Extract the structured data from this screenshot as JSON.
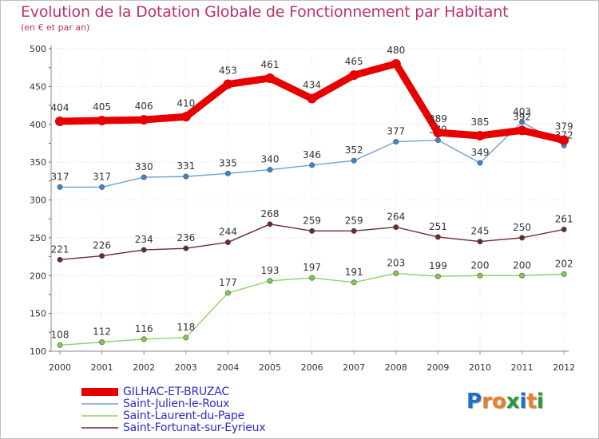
{
  "header": {
    "title": "Evolution de la Dotation Globale de Fonctionnement par Habitant",
    "subtitle": "(en € et par an)"
  },
  "logo": {
    "text": "Proxiti",
    "letters": [
      {
        "ch": "P",
        "color": "#1f6fc8"
      },
      {
        "ch": "r",
        "color": "#e8812a"
      },
      {
        "ch": "o",
        "color": "#e8812a"
      },
      {
        "ch": "x",
        "color": "#2a9a3a"
      },
      {
        "ch": "i",
        "color": "#1f6fc8"
      },
      {
        "ch": "t",
        "color": "#e8812a"
      },
      {
        "ch": "i",
        "color": "#2a9a3a"
      }
    ]
  },
  "chart_data": {
    "type": "line",
    "title": "Evolution de la Dotation Globale de Fonctionnement par Habitant",
    "subtitle": "(en € et par an)",
    "x": [
      "2000",
      "2001",
      "2002",
      "2003",
      "2004",
      "2005",
      "2006",
      "2007",
      "2008",
      "2009",
      "2010",
      "2011",
      "2012"
    ],
    "ylim": [
      100,
      500
    ],
    "yticks": [
      100,
      150,
      200,
      250,
      300,
      350,
      400,
      450,
      500
    ],
    "grid": true,
    "legend_position": "bottom-left",
    "series": [
      {
        "name": "Saint-Laurent-du-Pape",
        "color": "#8fd16a",
        "marker_color": "#7ccd4a",
        "style": "thin",
        "values": [
          108,
          112,
          116,
          118,
          177,
          193,
          197,
          191,
          203,
          199,
          200,
          200,
          202
        ],
        "labels": [
          "108",
          "112",
          "116",
          "118",
          "177",
          "193",
          "197",
          "191",
          "203",
          "199",
          "200",
          "200",
          "202"
        ]
      },
      {
        "name": "Saint-Fortunat-sur-Eyrieux",
        "color": "#6b2a2a",
        "marker_color": "#6b2a2a",
        "style": "thin",
        "values": [
          221,
          226,
          234,
          236,
          244,
          268,
          259,
          259,
          264,
          251,
          245,
          250,
          261
        ],
        "labels": [
          "221",
          "226",
          "234",
          "236",
          "244",
          "268",
          "259",
          "259",
          "264",
          "251",
          "245",
          "250",
          "261"
        ]
      },
      {
        "name": "Saint-Julien-le-Roux",
        "color": "#6fa0d0",
        "marker_color": "#3e84cc",
        "style": "thin",
        "values": [
          317,
          317,
          330,
          331,
          335,
          340,
          346,
          352,
          377,
          379,
          349,
          403,
          372
        ],
        "labels": [
          "317",
          "317",
          "330",
          "331",
          "335",
          "340",
          "346",
          "352",
          "377",
          "379",
          "349",
          "403",
          "372"
        ]
      },
      {
        "name": "GILHAC-ET-BRUZAC",
        "color": "#e80000",
        "marker_color": "#e80000",
        "style": "thick",
        "values": [
          404,
          405,
          406,
          410,
          453,
          461,
          434,
          465,
          480,
          389,
          385,
          392,
          379
        ],
        "labels": [
          "404",
          "405",
          "406",
          "410",
          "453",
          "461",
          "434",
          "465",
          "480",
          "389",
          "385",
          "392",
          "379"
        ]
      }
    ],
    "legend": [
      {
        "name": "GILHAC-ET-BRUZAC",
        "color": "#e80000",
        "style": "thick"
      },
      {
        "name": "Saint-Julien-le-Roux",
        "color": "#6fa0d0",
        "style": "thin"
      },
      {
        "name": "Saint-Laurent-du-Pape",
        "color": "#8fd16a",
        "style": "thin"
      },
      {
        "name": "Saint-Fortunat-sur-Eyrieux",
        "color": "#6b2a2a",
        "style": "thin"
      }
    ]
  }
}
